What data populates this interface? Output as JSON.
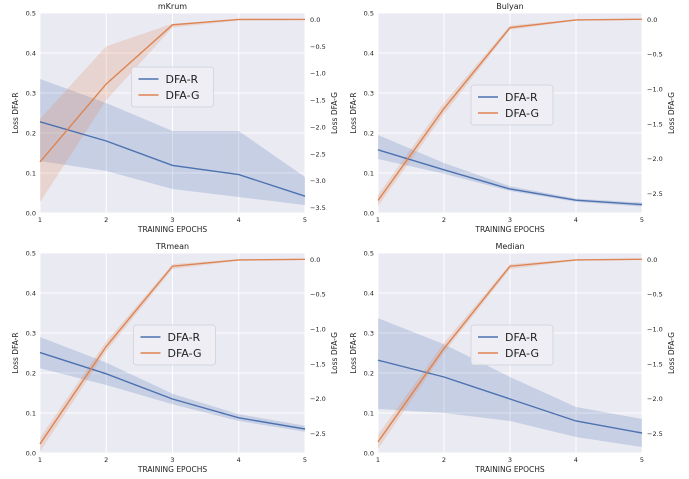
{
  "chart_data": [
    {
      "type": "line",
      "title": "mKrum",
      "xlabel": "TRAINING EPOCHS",
      "ylabel_left": "Loss  DFA-R",
      "ylabel_right": "Loss  DFA-G",
      "x": [
        1,
        2,
        3,
        4,
        5
      ],
      "x_ticks": [
        "1",
        "2",
        "3",
        "4",
        "5"
      ],
      "ylim_left": [
        0,
        0.5
      ],
      "yticks_left": [
        "0.0",
        "0.1",
        "0.2",
        "0.3",
        "0.4",
        "0.5"
      ],
      "ylim_right": [
        -3.6,
        0.12
      ],
      "yticks_right": [
        "0.0",
        "−0.5",
        "−1.0",
        "−1.5",
        "−2.0",
        "−2.5",
        "−3.0",
        "−3.5"
      ],
      "series": [
        {
          "name": "DFA-R",
          "axis": "left",
          "color": "#4c72b0",
          "values": [
            0.228,
            0.18,
            0.119,
            0.096,
            0.042
          ],
          "lower": [
            0.13,
            0.105,
            0.06,
            0.04,
            0.02
          ],
          "upper": [
            0.335,
            0.275,
            0.205,
            0.205,
            0.09
          ]
        },
        {
          "name": "DFA-G",
          "axis": "right",
          "color": "#dd8452",
          "values": [
            -2.65,
            -1.2,
            -0.1,
            0.0,
            0.0
          ],
          "lower": [
            -3.4,
            -1.5,
            -0.15,
            -0.02,
            -0.01
          ],
          "upper": [
            -1.85,
            -0.5,
            -0.08,
            0.0,
            0.0
          ]
        }
      ],
      "legend": "center",
      "grid": true
    },
    {
      "type": "line",
      "title": "Bulyan",
      "xlabel": "TRAINING EPOCHS",
      "ylabel_left": "Loss  DFA-R",
      "ylabel_right": "Loss  DFA-G",
      "x": [
        1,
        2,
        3,
        4,
        5
      ],
      "x_ticks": [
        "1",
        "2",
        "3",
        "4",
        "5"
      ],
      "ylim_left": [
        0,
        0.5
      ],
      "yticks_left": [
        "0.0",
        "0.1",
        "0.2",
        "0.3",
        "0.4",
        "0.5"
      ],
      "ylim_right": [
        -2.78,
        0.09
      ],
      "yticks_right": [
        "0.0",
        "−0.5",
        "−1.0",
        "−1.5",
        "−2.0",
        "−2.5"
      ],
      "series": [
        {
          "name": "DFA-R",
          "axis": "left",
          "color": "#4c72b0",
          "values": [
            0.158,
            0.108,
            0.06,
            0.032,
            0.021
          ],
          "lower": [
            0.135,
            0.098,
            0.055,
            0.028,
            0.016
          ],
          "upper": [
            0.195,
            0.125,
            0.067,
            0.036,
            0.026
          ]
        },
        {
          "name": "DFA-G",
          "axis": "right",
          "color": "#dd8452",
          "values": [
            -2.6,
            -1.28,
            -0.12,
            -0.01,
            0.0
          ],
          "lower": [
            -2.68,
            -1.36,
            -0.15,
            -0.02,
            -0.01
          ],
          "upper": [
            -2.52,
            -1.2,
            -0.09,
            0.0,
            0.0
          ]
        }
      ],
      "legend": "center",
      "grid": true
    },
    {
      "type": "line",
      "title": "TRmean",
      "xlabel": "TRAINING EPOCHS",
      "ylabel_left": "Loss  DFA-R",
      "ylabel_right": "Loss  DFA-G",
      "x": [
        1,
        2,
        3,
        4,
        5
      ],
      "x_ticks": [
        "1",
        "2",
        "3",
        "4",
        "5"
      ],
      "ylim_left": [
        0,
        0.5
      ],
      "yticks_left": [
        "0.0",
        "0.1",
        "0.2",
        "0.3",
        "0.4",
        "0.5"
      ],
      "ylim_right": [
        -2.78,
        0.09
      ],
      "yticks_right": [
        "0.0",
        "−0.5",
        "−1.0",
        "−1.5",
        "−2.0",
        "−2.5"
      ],
      "series": [
        {
          "name": "DFA-R",
          "axis": "left",
          "color": "#4c72b0",
          "values": [
            0.251,
            0.198,
            0.135,
            0.088,
            0.06
          ],
          "lower": [
            0.212,
            0.17,
            0.122,
            0.08,
            0.053
          ],
          "upper": [
            0.29,
            0.226,
            0.148,
            0.097,
            0.068
          ]
        },
        {
          "name": "DFA-G",
          "axis": "right",
          "color": "#dd8452",
          "values": [
            -2.65,
            -1.25,
            -0.1,
            -0.01,
            0.0
          ],
          "lower": [
            -2.76,
            -1.32,
            -0.14,
            -0.02,
            -0.01
          ],
          "upper": [
            -2.56,
            -1.18,
            -0.07,
            0.0,
            0.0
          ]
        }
      ],
      "legend": "center",
      "grid": true
    },
    {
      "type": "line",
      "title": "Median",
      "xlabel": "TRAINING EPOCHS",
      "ylabel_left": "Loss  DFA-R",
      "ylabel_right": "Loss  DFA-G",
      "x": [
        1,
        2,
        3,
        4,
        5
      ],
      "x_ticks": [
        "1",
        "2",
        "3",
        "4",
        "5"
      ],
      "ylim_left": [
        0,
        0.5
      ],
      "yticks_left": [
        "0.0",
        "0.1",
        "0.2",
        "0.3",
        "0.4",
        "0.5"
      ],
      "ylim_right": [
        -2.78,
        0.09
      ],
      "yticks_right": [
        "0.0",
        "−0.5",
        "−1.0",
        "−1.5",
        "−2.0",
        "−2.5"
      ],
      "series": [
        {
          "name": "DFA-R",
          "axis": "left",
          "color": "#4c72b0",
          "values": [
            0.232,
            0.19,
            0.135,
            0.08,
            0.05
          ],
          "lower": [
            0.11,
            0.1,
            0.08,
            0.04,
            0.015
          ],
          "upper": [
            0.337,
            0.272,
            0.19,
            0.115,
            0.085
          ]
        },
        {
          "name": "DFA-G",
          "axis": "right",
          "color": "#dd8452",
          "values": [
            -2.62,
            -1.28,
            -0.1,
            -0.01,
            0.0
          ],
          "lower": [
            -2.72,
            -1.34,
            -0.14,
            -0.02,
            -0.01
          ],
          "upper": [
            -2.52,
            -1.2,
            -0.07,
            0.0,
            0.0
          ]
        }
      ],
      "legend": "center",
      "grid": true
    }
  ],
  "style": {
    "plot_background": "#e9eaf2",
    "grid_color": "#ffffff",
    "text_color": "#222222"
  }
}
